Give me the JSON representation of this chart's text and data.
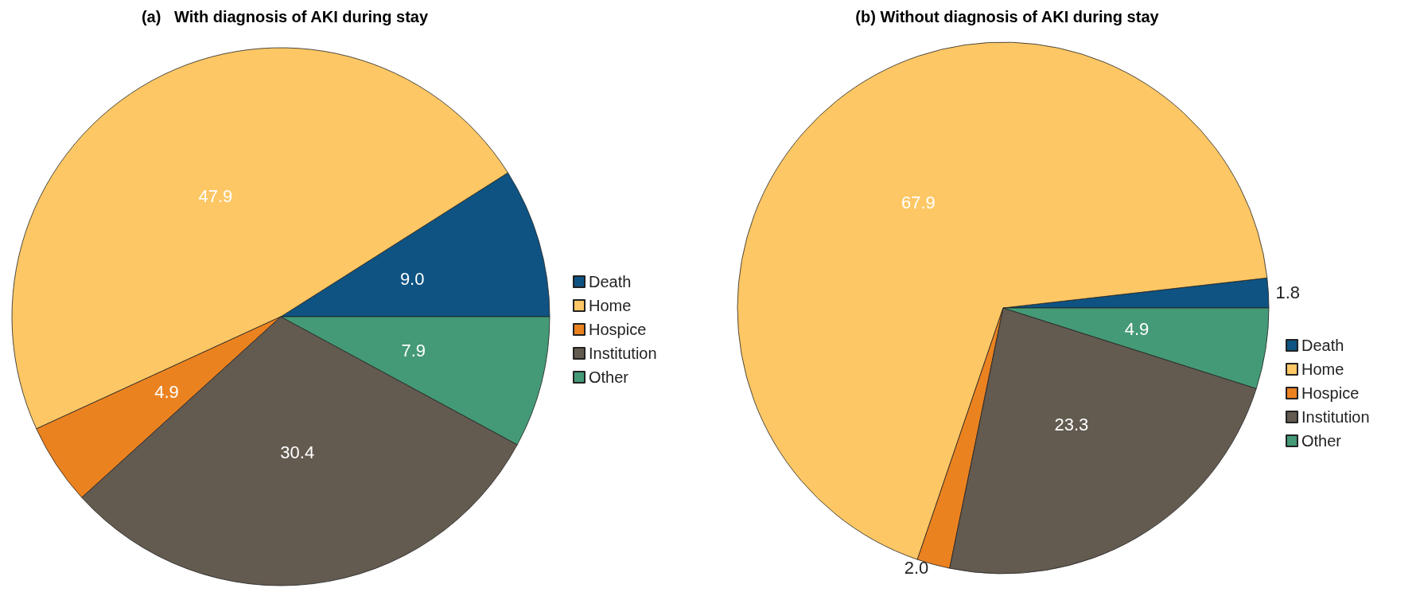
{
  "chart_data": [
    {
      "type": "pie",
      "title": "(a)   With diagnosis of AKI during stay",
      "categories": [
        "Death",
        "Home",
        "Hospice",
        "Institution",
        "Other"
      ],
      "values": [
        9.0,
        47.9,
        4.9,
        30.4,
        7.9
      ],
      "value_labels": [
        "9.0",
        "47.9",
        "4.9",
        "30.4",
        "7.9"
      ],
      "colors": [
        "#0e5382",
        "#fdc765",
        "#eb8220",
        "#635a50",
        "#449a76"
      ],
      "legend": "right"
    },
    {
      "type": "pie",
      "title": "(b) Without diagnosis of AKI during stay",
      "categories": [
        "Death",
        "Home",
        "Hospice",
        "Institution",
        "Other"
      ],
      "values": [
        1.8,
        67.9,
        2.0,
        23.3,
        4.9
      ],
      "value_labels": [
        "1.8",
        "67.9",
        "2.0",
        "23.3",
        "4.9"
      ],
      "colors": [
        "#0e5382",
        "#fdc765",
        "#eb8220",
        "#635a50",
        "#449a76"
      ],
      "legend": "right"
    }
  ]
}
